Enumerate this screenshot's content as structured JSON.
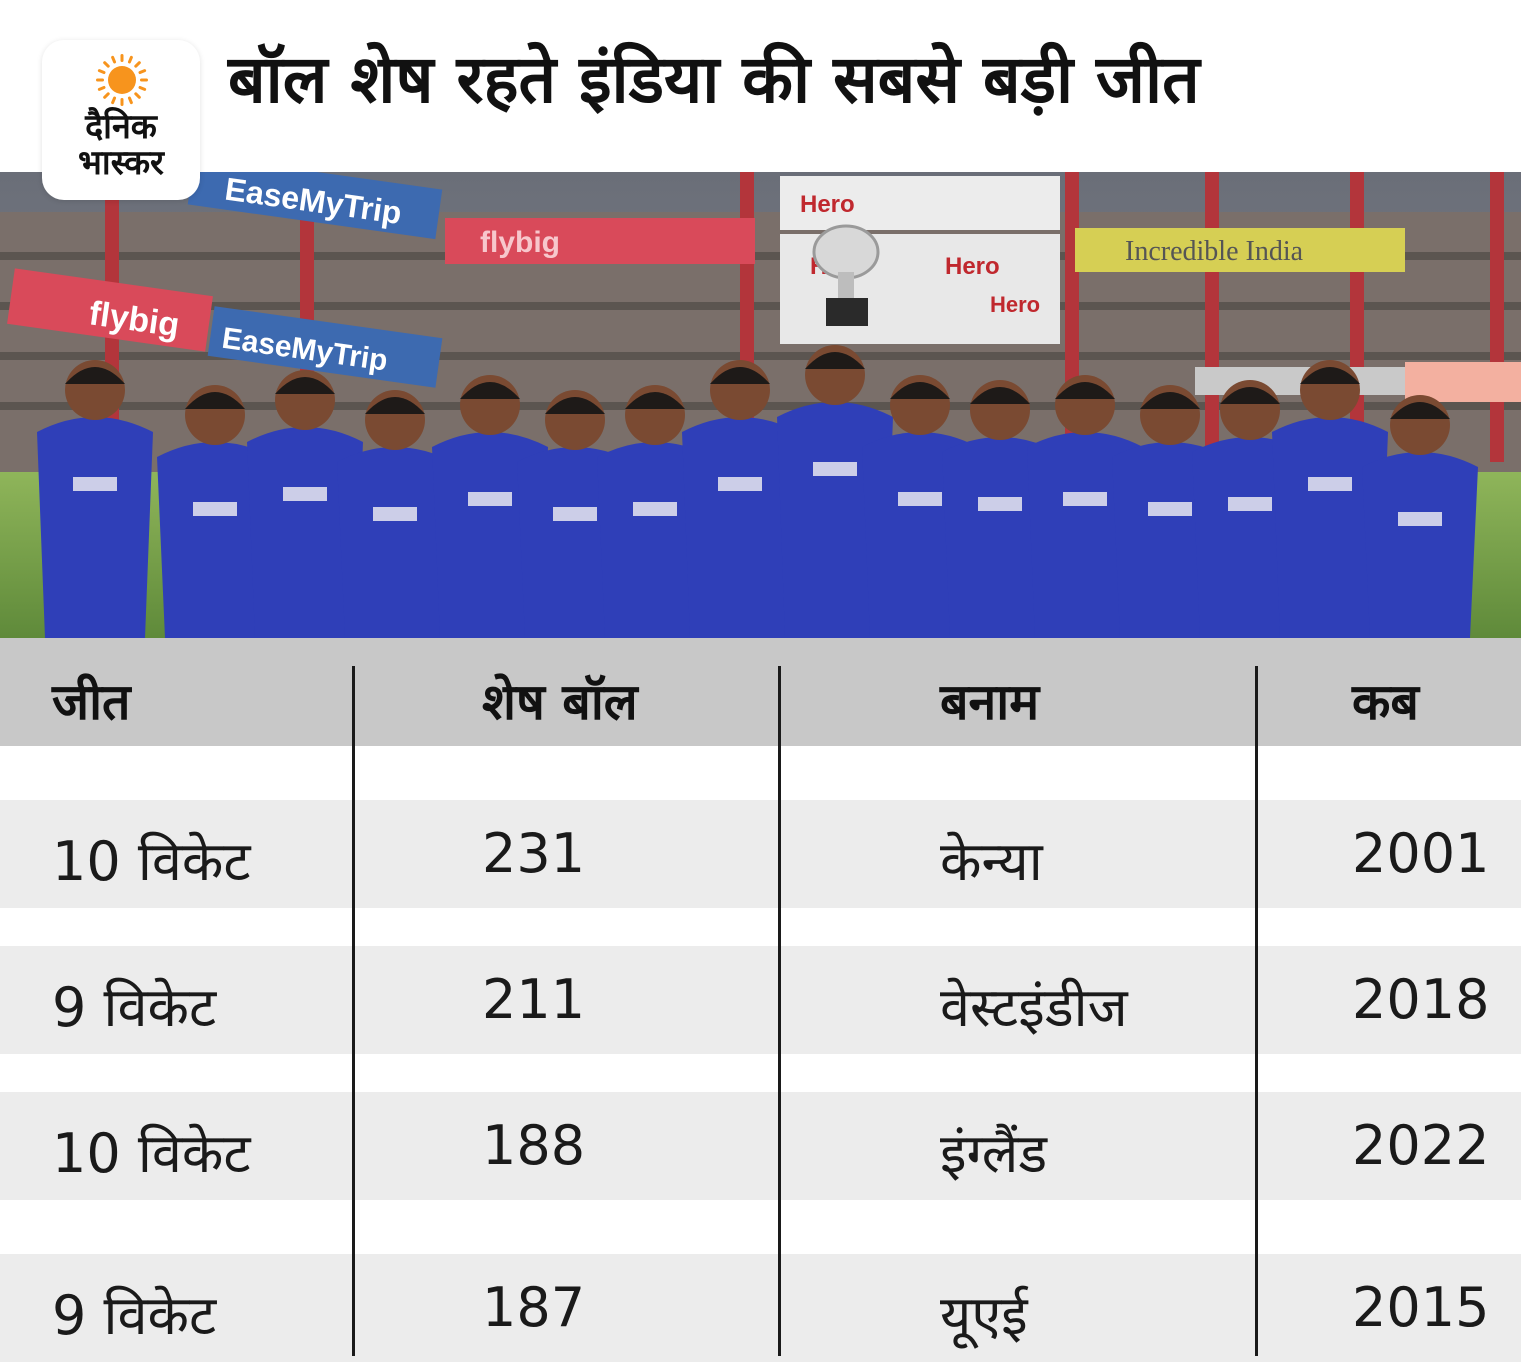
{
  "logo": {
    "line1": "दैनिक",
    "line2": "भास्कर",
    "sun_color": "#f7941d",
    "icon": "sun-icon"
  },
  "title": "बॉल शेष रहते इंडिया की सबसे बड़ी जीत",
  "photo": {
    "banners": [
      "EaseMyTrip",
      "flybig",
      "EaseMyTrip",
      "flybig",
      "Hero",
      "Incredible India",
      "Hero",
      "Hero",
      "Hero"
    ]
  },
  "table": {
    "headers": [
      "जीत",
      "शेष बॉल",
      "बनाम",
      "कब"
    ],
    "rows": [
      [
        "10 विकेट",
        "231",
        "केन्या",
        "2001"
      ],
      [
        "9 विकेट",
        "211",
        "वेस्टइंडीज",
        "2018"
      ],
      [
        "10 विकेट",
        "188",
        "इंग्लैंड",
        "2022"
      ],
      [
        "9 विकेट",
        "187",
        "यूएई",
        "2015"
      ]
    ]
  },
  "colors": {
    "header_bg": "#c8c8c8",
    "row_bg": "#ececec",
    "jersey": "#2f3fb8"
  }
}
